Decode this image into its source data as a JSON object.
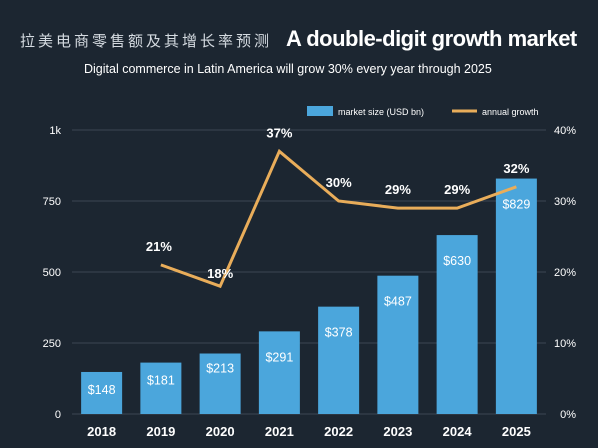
{
  "header": {
    "title_cn": "拉美电商零售额及其增长率预测",
    "title_en": "A double-digit growth market",
    "subtitle": "Digital commerce in Latin America will grow 30% every year through 2025"
  },
  "colors": {
    "background": "#1c2631",
    "bar": "#4ba6dc",
    "line": "#e9ad5a",
    "grid": "#3c4753"
  },
  "chart_data": {
    "type": "bar",
    "categories": [
      "2018",
      "2019",
      "2020",
      "2021",
      "2022",
      "2023",
      "2024",
      "2025"
    ],
    "series": [
      {
        "name": "market size (USD bn)",
        "type": "bar",
        "axis": "left",
        "values": [
          148,
          181,
          213,
          291,
          378,
          487,
          630,
          829
        ],
        "labels": [
          "$148",
          "$181",
          "$213",
          "$291",
          "$378",
          "$487",
          "$630",
          "$829"
        ]
      },
      {
        "name": "annual growth",
        "type": "line",
        "axis": "right",
        "values": [
          null,
          21,
          18,
          37,
          30,
          29,
          29,
          32
        ],
        "labels": [
          "",
          "21%",
          "18%",
          "37%",
          "30%",
          "29%",
          "29%",
          "32%"
        ]
      }
    ],
    "yleft": {
      "ticks": [
        0,
        250,
        500,
        750,
        1000
      ],
      "tick_labels": [
        "0",
        "250",
        "500",
        "750",
        "1k"
      ],
      "lim": [
        0,
        1000
      ]
    },
    "yright": {
      "ticks": [
        0,
        10,
        20,
        30,
        40
      ],
      "tick_labels": [
        "0%",
        "10%",
        "20%",
        "30%",
        "40%"
      ],
      "lim": [
        0,
        40
      ]
    },
    "grid": true,
    "legend_position": "top-right"
  }
}
